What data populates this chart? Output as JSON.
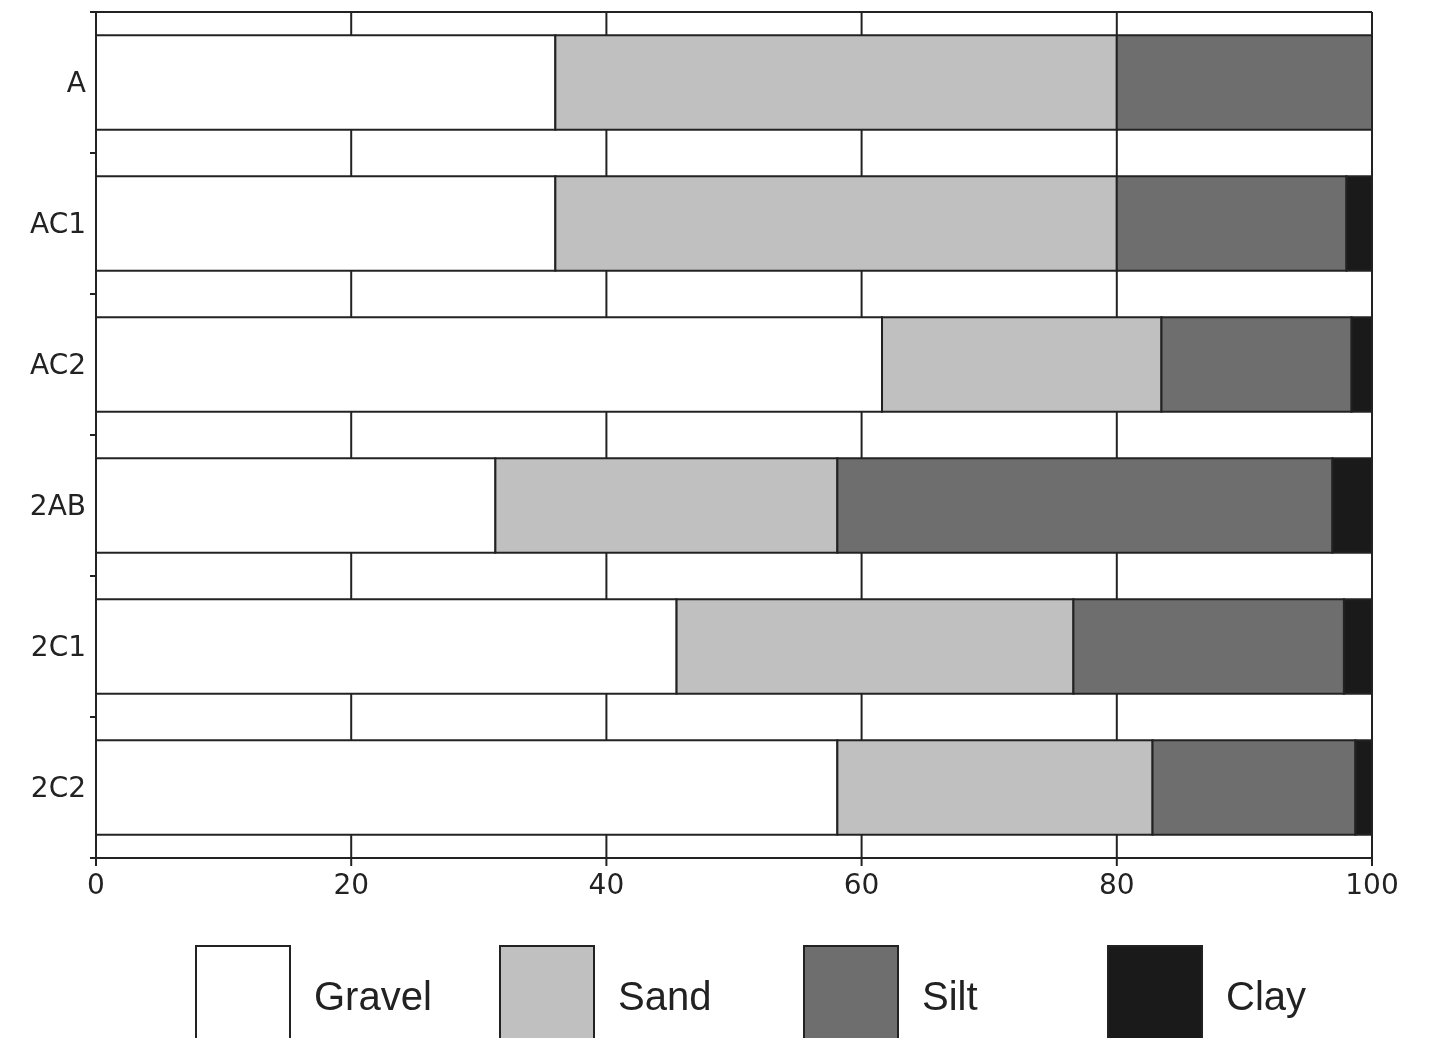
{
  "chart_data": {
    "type": "bar",
    "orientation": "horizontal",
    "stacked": true,
    "categories": [
      "A",
      "AC1",
      "AC2",
      "2AB",
      "2C1",
      "2C2"
    ],
    "series": [
      {
        "name": "Gravel",
        "color": "#ffffff",
        "values": [
          36,
          36,
          61.6,
          31.3,
          45.5,
          58.1
        ]
      },
      {
        "name": "Sand",
        "color": "#c0c0c0",
        "values": [
          44,
          44,
          21.9,
          26.8,
          31.1,
          24.7
        ]
      },
      {
        "name": "Silt",
        "color": "#6e6e6e",
        "values": [
          20,
          18,
          14.9,
          38.8,
          21.2,
          15.9
        ]
      },
      {
        "name": "Clay",
        "color": "#1a1a1a",
        "values": [
          0,
          2,
          1.6,
          3.1,
          2.2,
          1.3
        ]
      }
    ],
    "xlim": [
      0,
      100
    ],
    "xticks": [
      0,
      20,
      40,
      60,
      80,
      100
    ],
    "grid": "x",
    "legend": "bottom"
  }
}
